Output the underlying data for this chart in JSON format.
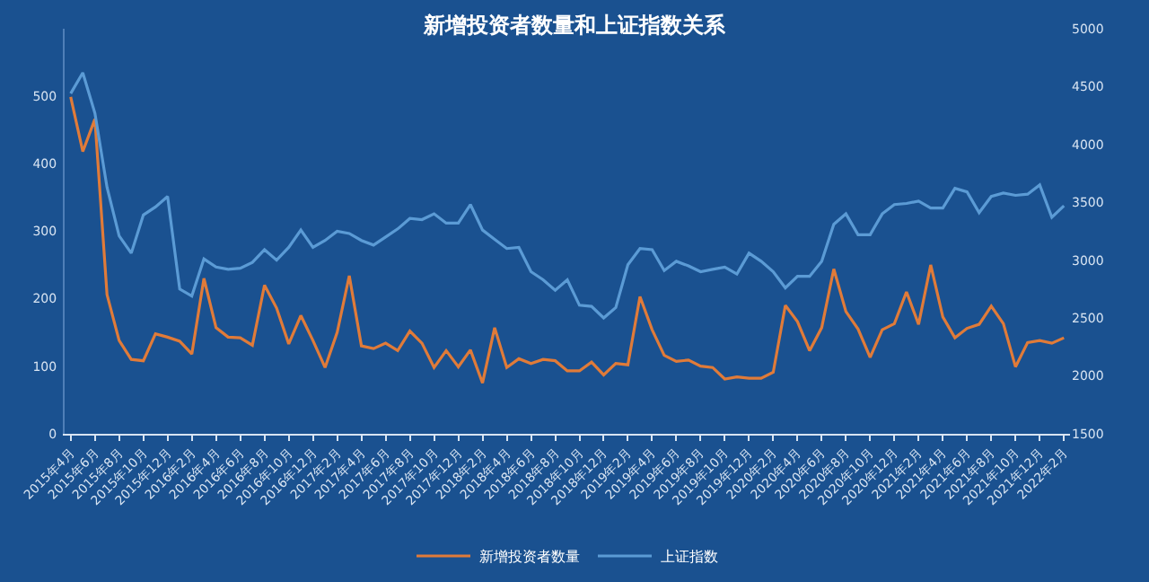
{
  "chart_data": {
    "type": "line",
    "title": "新增投资者数量和上证指数关系",
    "categories": [
      "2015年4月",
      null,
      "2015年6月",
      null,
      "2015年8月",
      null,
      "2015年10月",
      null,
      "2015年12月",
      null,
      "2016年2月",
      null,
      "2016年4月",
      null,
      "2016年6月",
      null,
      "2016年8月",
      null,
      "2016年10月",
      null,
      "2016年12月",
      null,
      "2017年2月",
      null,
      "2017年4月",
      null,
      "2017年6月",
      null,
      "2017年8月",
      null,
      "2017年10月",
      null,
      "2017年12月",
      null,
      "2018年2月",
      null,
      "2018年4月",
      null,
      "2018年6月",
      null,
      "2018年8月",
      null,
      "2018年10月",
      null,
      "2018年12月",
      null,
      "2019年2月",
      null,
      "2019年4月",
      null,
      "2019年6月",
      null,
      "2019年8月",
      null,
      "2019年10月",
      null,
      "2019年12月",
      null,
      "2020年2月",
      null,
      "2020年4月",
      null,
      "2020年6月",
      null,
      "2020年8月",
      null,
      "2020年10月",
      null,
      "2020年12月",
      null,
      "2021年2月",
      null,
      "2021年4月",
      null,
      "2021年6月",
      null,
      "2021年8月",
      null,
      "2021年10月",
      null,
      "2021年12月",
      null,
      "2022年2月"
    ],
    "series": [
      {
        "name": "新增投资者数量",
        "color": "#e07b39",
        "values": [
          499,
          418,
          466,
          206,
          138,
          110,
          108,
          148,
          143,
          137,
          118,
          230,
          157,
          143,
          142,
          131,
          220,
          186,
          133,
          175,
          138,
          98,
          150,
          234,
          130,
          126,
          134,
          123,
          152,
          134,
          98,
          123,
          99,
          124,
          75,
          157,
          98,
          111,
          104,
          110,
          108,
          93,
          93,
          106,
          87,
          104,
          102,
          203,
          154,
          116,
          107,
          109,
          100,
          98,
          81,
          84,
          82,
          82,
          91,
          190,
          166,
          123,
          157,
          244,
          181,
          155,
          113,
          154,
          163,
          210,
          162,
          250,
          173,
          142,
          156,
          162,
          189,
          163,
          99,
          135,
          138,
          134,
          142
        ]
      },
      {
        "name": "上证指数",
        "color": "#5b9bd5",
        "axis": "y2",
        "values": [
          4440,
          4620,
          4270,
          3630,
          3210,
          3060,
          3390,
          3460,
          3550,
          2750,
          2690,
          3010,
          2940,
          2920,
          2930,
          2980,
          3090,
          3000,
          3110,
          3260,
          3110,
          3170,
          3250,
          3230,
          3170,
          3130,
          3200,
          3270,
          3360,
          3350,
          3400,
          3320,
          3320,
          3480,
          3260,
          3180,
          3100,
          3110,
          2900,
          2830,
          2740,
          2830,
          2610,
          2600,
          2500,
          2590,
          2960,
          3100,
          3090,
          2910,
          2990,
          2950,
          2900,
          2920,
          2940,
          2880,
          3060,
          2990,
          2900,
          2760,
          2860,
          2860,
          2990,
          3310,
          3400,
          3220,
          3220,
          3400,
          3480,
          3490,
          3510,
          3450,
          3450,
          3620,
          3590,
          3410,
          3550,
          3580,
          3560,
          3570,
          3650,
          3370,
          3470
        ]
      }
    ],
    "ylim": [
      0,
      600
    ],
    "yticks": [
      0,
      100,
      200,
      300,
      400,
      500
    ],
    "y2lim": [
      1500,
      5000
    ],
    "y2ticks": [
      1500,
      2000,
      2500,
      3000,
      3500,
      4000,
      4500,
      5000
    ],
    "grid": false,
    "legend": "bottom",
    "line_style": "solid",
    "marker": "none"
  }
}
